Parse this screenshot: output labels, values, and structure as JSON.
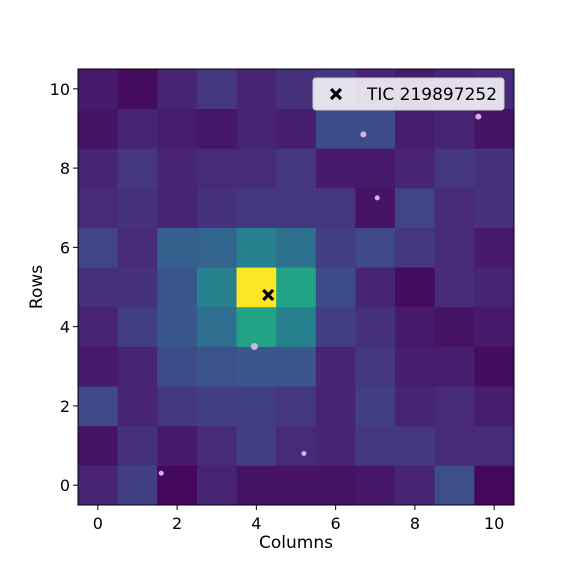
{
  "chart_data": {
    "type": "heatmap",
    "title": "",
    "xlabel": "Columns",
    "ylabel": "Rows",
    "xlim": [
      -0.5,
      10.5
    ],
    "ylim": [
      -0.5,
      10.5
    ],
    "x_ticks": [
      0,
      2,
      4,
      6,
      8,
      10
    ],
    "y_ticks": [
      0,
      2,
      4,
      6,
      8,
      10
    ],
    "colormap": "viridis",
    "grid": false,
    "rows_bottom_to_top": [
      [
        0.1,
        0.18,
        0.02,
        0.1,
        0.05,
        0.05,
        0.05,
        0.06,
        0.1,
        0.24,
        0.02
      ],
      [
        0.05,
        0.14,
        0.07,
        0.12,
        0.18,
        0.12,
        0.1,
        0.16,
        0.16,
        0.12,
        0.12
      ],
      [
        0.22,
        0.1,
        0.16,
        0.18,
        0.18,
        0.16,
        0.1,
        0.18,
        0.1,
        0.12,
        0.08
      ],
      [
        0.07,
        0.1,
        0.23,
        0.25,
        0.27,
        0.27,
        0.1,
        0.16,
        0.08,
        0.08,
        0.03
      ],
      [
        0.1,
        0.18,
        0.27,
        0.36,
        0.58,
        0.43,
        0.18,
        0.14,
        0.07,
        0.05,
        0.07
      ],
      [
        0.14,
        0.14,
        0.27,
        0.43,
        1.0,
        0.58,
        0.23,
        0.1,
        0.03,
        0.12,
        0.1
      ],
      [
        0.2,
        0.12,
        0.3,
        0.32,
        0.43,
        0.37,
        0.18,
        0.22,
        0.16,
        0.12,
        0.07
      ],
      [
        0.12,
        0.14,
        0.1,
        0.14,
        0.16,
        0.16,
        0.16,
        0.05,
        0.2,
        0.12,
        0.14
      ],
      [
        0.1,
        0.16,
        0.1,
        0.12,
        0.12,
        0.16,
        0.07,
        0.07,
        0.1,
        0.16,
        0.14
      ],
      [
        0.05,
        0.1,
        0.08,
        0.06,
        0.1,
        0.08,
        0.23,
        0.23,
        0.08,
        0.1,
        0.05
      ],
      [
        0.07,
        0.03,
        0.1,
        0.16,
        0.1,
        0.14,
        0.16,
        0.1,
        0.07,
        0.1,
        0.12
      ]
    ],
    "target": {
      "x": 4.3,
      "y": 4.8,
      "label": "TIC 219897252",
      "marker": "X",
      "color": "#000000"
    },
    "field_stars": [
      {
        "x": 6.7,
        "y": 8.85,
        "size": 3
      },
      {
        "x": 9.6,
        "y": 9.3,
        "size": 3
      },
      {
        "x": 7.05,
        "y": 7.25,
        "size": 2.5
      },
      {
        "x": 3.95,
        "y": 3.5,
        "size": 3.5
      },
      {
        "x": 5.2,
        "y": 0.8,
        "size": 2.5
      },
      {
        "x": 1.6,
        "y": 0.3,
        "size": 2.5
      }
    ],
    "star_color": "#cdb6e0",
    "legend": {
      "placement": "top-right",
      "entries": [
        "TIC 219897252"
      ]
    }
  }
}
